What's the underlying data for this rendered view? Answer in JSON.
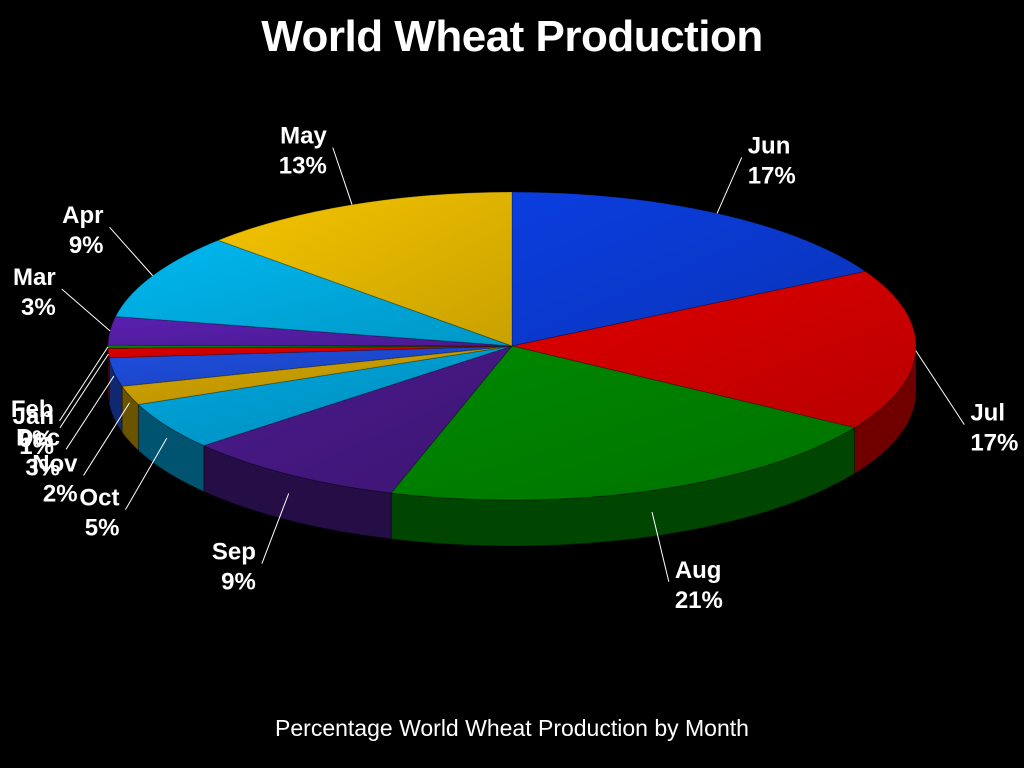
{
  "chart_data": {
    "type": "pie",
    "style": "3d",
    "title": "World Wheat Production",
    "subtitle": "Percentage World Wheat Production  by Month",
    "slices": [
      {
        "label": "Jun",
        "value": 17,
        "value_label": "17%",
        "color": "#0b3ee0"
      },
      {
        "label": "Jul",
        "value": 17,
        "value_label": "17%",
        "color": "#e00000"
      },
      {
        "label": "Aug",
        "value": 21,
        "value_label": "21%",
        "color": "#008a00"
      },
      {
        "label": "Sep",
        "value": 9,
        "value_label": "9%",
        "color": "#4a1a8c"
      },
      {
        "label": "Oct",
        "value": 5,
        "value_label": "5%",
        "color": "#00a8e0"
      },
      {
        "label": "Nov",
        "value": 2,
        "value_label": "2%",
        "color": "#d6a800"
      },
      {
        "label": "Dec",
        "value": 3,
        "value_label": "3%",
        "color": "#1f4fe0"
      },
      {
        "label": "Jan",
        "value": 1,
        "value_label": "1%",
        "color": "#e00000"
      },
      {
        "label": "Feb",
        "value": 0.3,
        "value_label": "0%",
        "color": "#008a00"
      },
      {
        "label": "Mar",
        "value": 3,
        "value_label": "3%",
        "color": "#5a20b0"
      },
      {
        "label": "Apr",
        "value": 9,
        "value_label": "9%",
        "color": "#00b8f0"
      },
      {
        "label": "May",
        "value": 13,
        "value_label": "13%",
        "color": "#f5c400"
      }
    ]
  }
}
